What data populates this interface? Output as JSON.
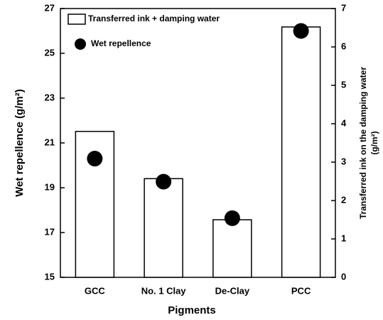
{
  "chart_data": {
    "type": "bar+scatter",
    "categories": [
      "GCC",
      "No. 1 Clay",
      "De-Clay",
      "PCC"
    ],
    "xlabel": "Pigments",
    "ylabel": "Wet repellence (g/m²)",
    "y2label": [
      "Transferred ink on the damping water",
      "(g/m²)"
    ],
    "ylim": [
      15,
      27
    ],
    "yticks": [
      15,
      17,
      19,
      21,
      23,
      25,
      27
    ],
    "y2lim": [
      0,
      7
    ],
    "y2ticks": [
      0,
      1,
      2,
      3,
      4,
      5,
      6,
      7
    ],
    "grid": false,
    "legend": "upper left",
    "series": [
      {
        "name": "Transferred ink + damping water",
        "type": "bar",
        "axis": "y2",
        "color": "#ffffff",
        "values": [
          3.8,
          2.57,
          1.5,
          6.52
        ]
      },
      {
        "name": "Wet repellence",
        "type": "scatter",
        "axis": "y",
        "color": "#000000",
        "values": [
          20.3,
          19.27,
          17.64,
          26.0
        ]
      }
    ]
  }
}
